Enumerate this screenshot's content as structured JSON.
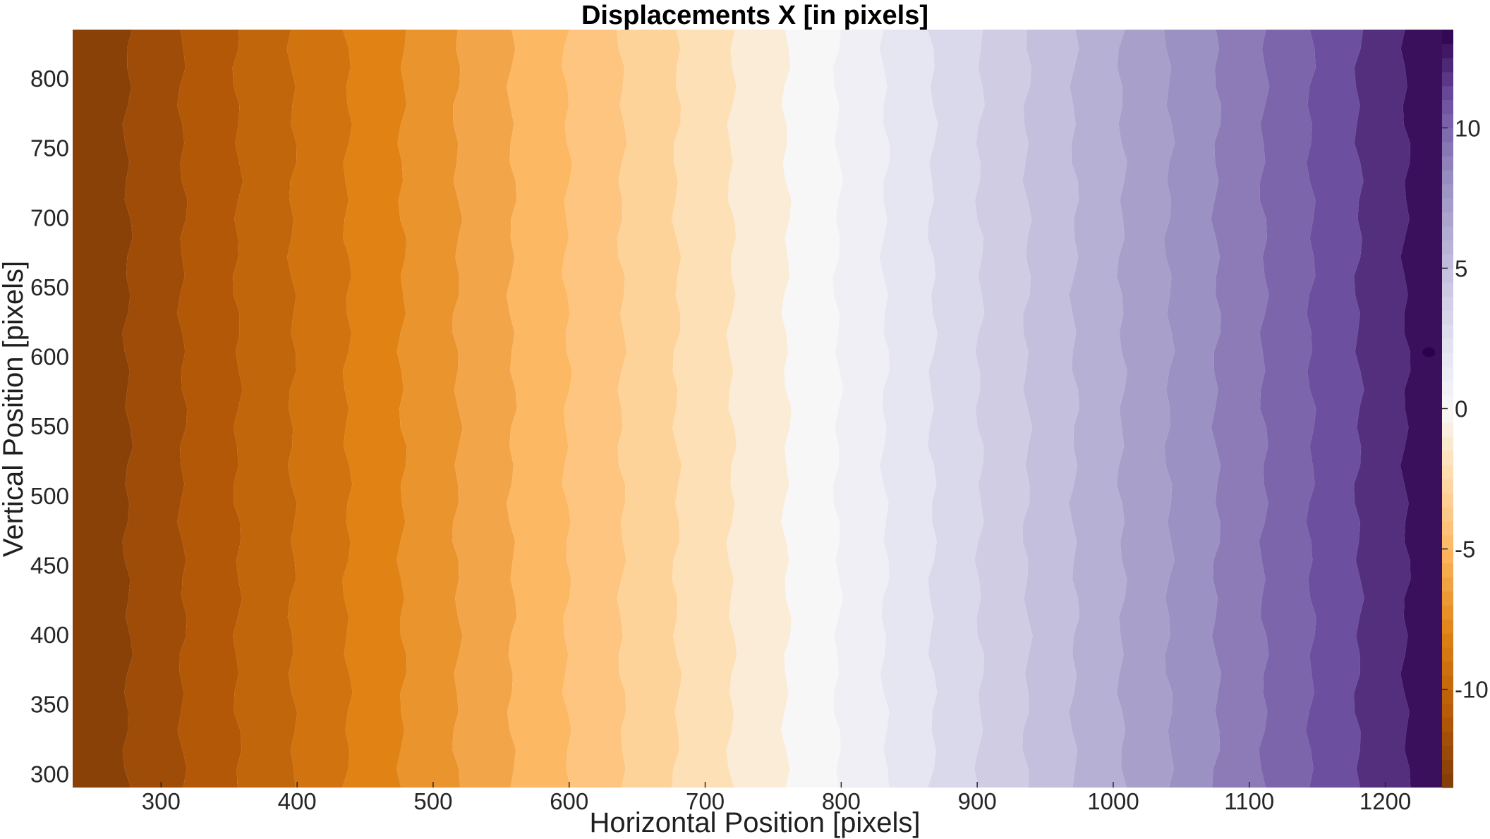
{
  "chart_data": {
    "type": "heatmap",
    "title": "Displacements X [in pixels]",
    "xlabel": "Horizontal Position [pixels]",
    "ylabel": "Vertical Position [pixels]",
    "xlim": [
      235,
      1250
    ],
    "ylim": [
      290,
      835
    ],
    "x_ticks": [
      300,
      400,
      500,
      600,
      700,
      800,
      900,
      1000,
      1100,
      1200
    ],
    "y_ticks": [
      300,
      350,
      400,
      450,
      500,
      550,
      600,
      650,
      700,
      750,
      800
    ],
    "colorbar": {
      "lim": [
        -13.5,
        13.5
      ],
      "ticks": [
        -10,
        -5,
        0,
        5,
        10
      ],
      "tick_labels": [
        "-10",
        "-5",
        "0",
        "5",
        "10"
      ],
      "colormap_stops": [
        {
          "v": -13.5,
          "color": "#7f3b08"
        },
        {
          "v": -11.0,
          "color": "#b35806"
        },
        {
          "v": -8.0,
          "color": "#e08214"
        },
        {
          "v": -5.0,
          "color": "#fdb863"
        },
        {
          "v": -2.0,
          "color": "#fee0b6"
        },
        {
          "v": 0.0,
          "color": "#f7f7f7"
        },
        {
          "v": 2.0,
          "color": "#e6e6f2"
        },
        {
          "v": 5.0,
          "color": "#c3bfdd"
        },
        {
          "v": 8.0,
          "color": "#9b91c2"
        },
        {
          "v": 11.0,
          "color": "#6d4fa0"
        },
        {
          "v": 13.5,
          "color": "#2d004b"
        }
      ]
    },
    "field": {
      "description_of_values": "displacement increases roughly linearly with horizontal position",
      "x_at_min": 235,
      "value_at_min": -13.5,
      "x_at_zero": 780,
      "value_at_zero": 0,
      "x_at_max": 1250,
      "value_at_max": 13.5,
      "contour_step": 1
    }
  }
}
